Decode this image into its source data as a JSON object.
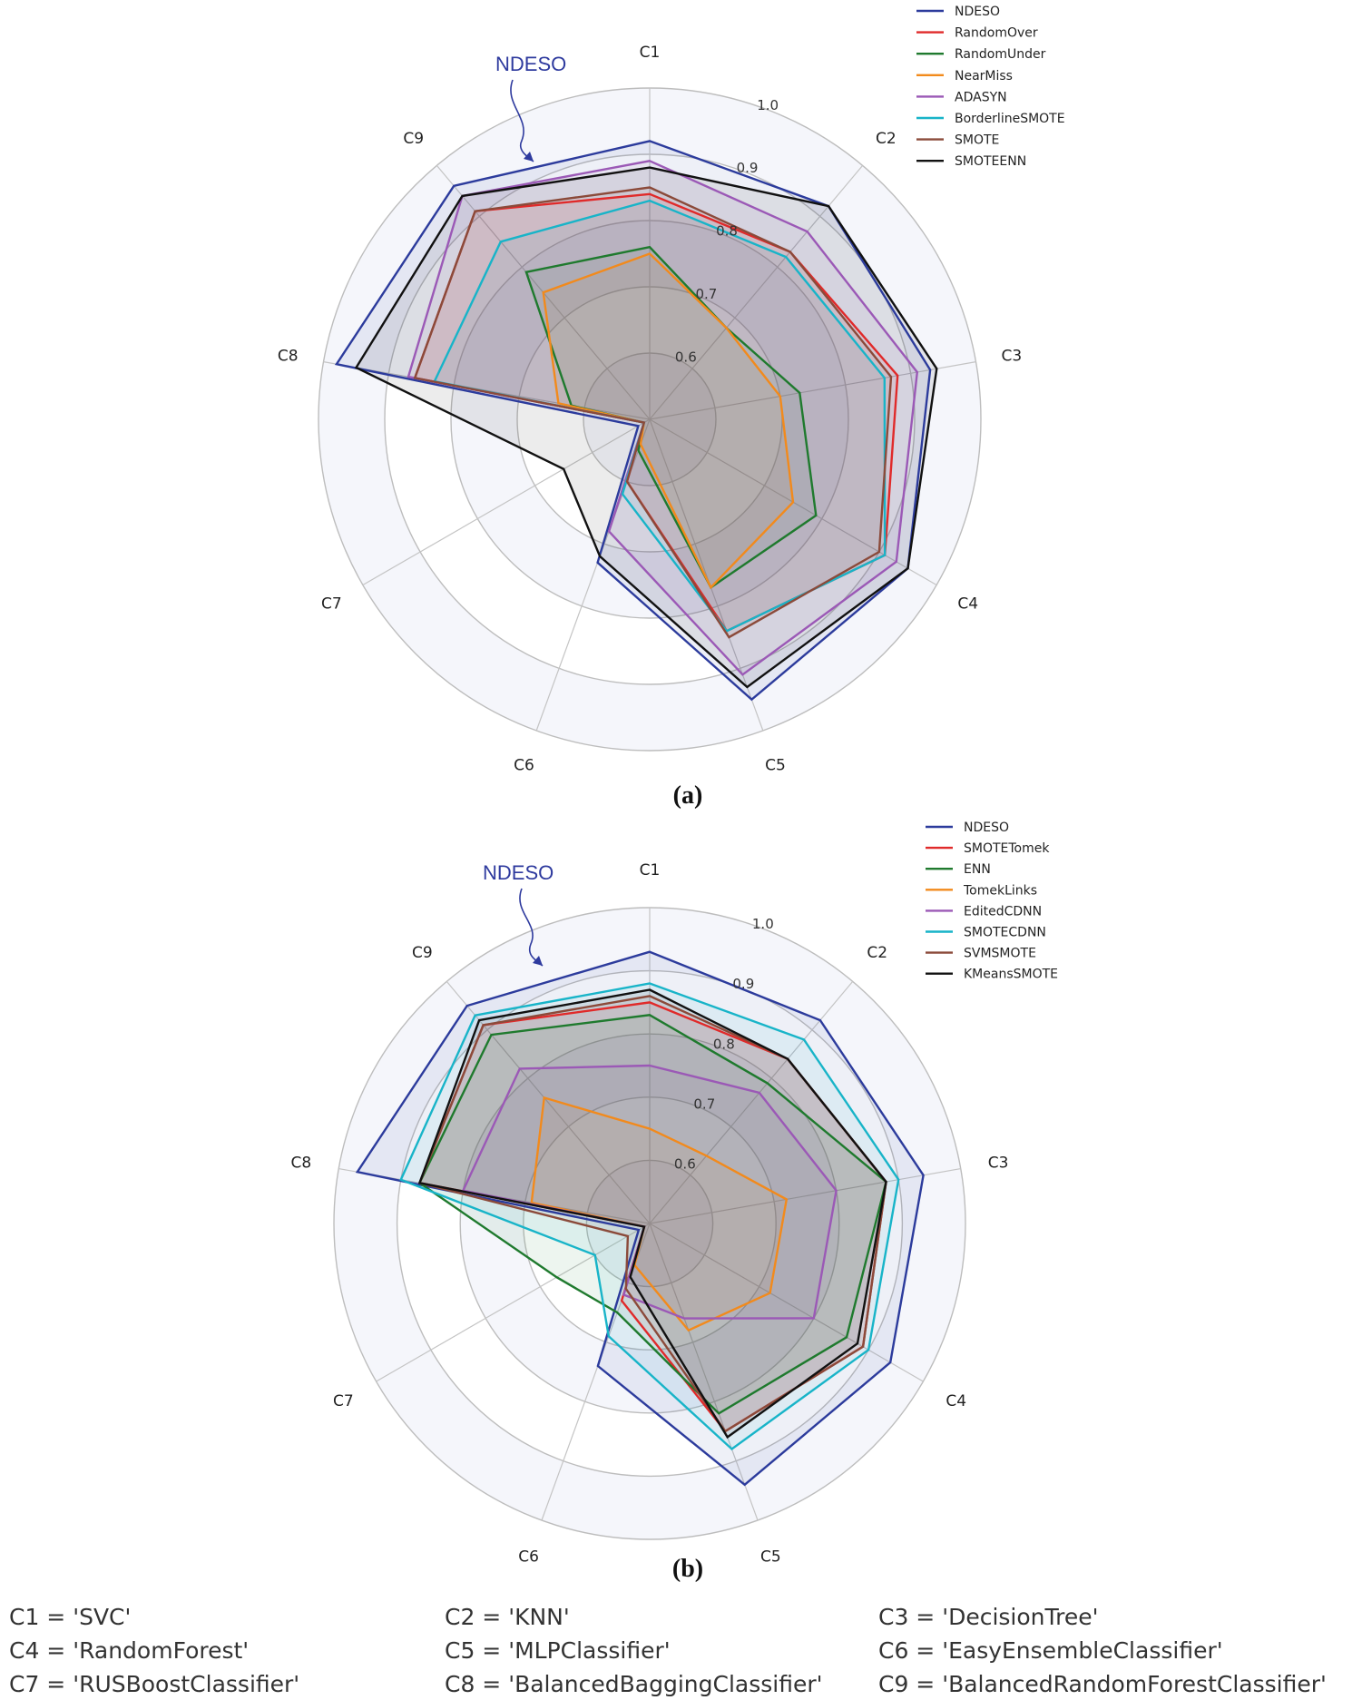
{
  "chart_data": [
    {
      "type": "radar",
      "panel_label": "(a)",
      "annotation": "NDESO",
      "axes": [
        "C1",
        "C2",
        "C3",
        "C4",
        "C5",
        "C6",
        "C7",
        "C8",
        "C9"
      ],
      "rmin": 0.5,
      "rmax": 1.0,
      "ticks": [
        0.6,
        0.7,
        0.8,
        0.9,
        1.0
      ],
      "tick_labels": [
        "0.6",
        "0.7",
        "0.8",
        "0.9",
        "1.0"
      ],
      "series": [
        {
          "name": "NDESO",
          "color": "#2c3b9c",
          "values": [
            0.92,
            0.92,
            0.93,
            0.95,
            0.95,
            0.73,
            0.52,
            0.98,
            0.96
          ]
        },
        {
          "name": "RandomOver",
          "color": "#e02a2a",
          "values": [
            0.84,
            0.83,
            0.88,
            0.91,
            0.84,
            0.6,
            0.51,
            0.86,
            0.91
          ]
        },
        {
          "name": "RandomUnder",
          "color": "#1f7a2e",
          "values": [
            0.76,
            0.68,
            0.73,
            0.79,
            0.77,
            0.55,
            0.51,
            0.62,
            0.79
          ]
        },
        {
          "name": "NearMiss",
          "color": "#f28a1c",
          "values": [
            0.75,
            0.68,
            0.7,
            0.75,
            0.77,
            0.54,
            0.51,
            0.64,
            0.75
          ]
        },
        {
          "name": "ADASYN",
          "color": "#9b59b6",
          "values": [
            0.89,
            0.87,
            0.91,
            0.93,
            0.91,
            0.68,
            0.51,
            0.87,
            0.94
          ]
        },
        {
          "name": "BorderlineSMOTE",
          "color": "#18b4c8",
          "values": [
            0.83,
            0.82,
            0.86,
            0.91,
            0.84,
            0.62,
            0.51,
            0.83,
            0.85
          ]
        },
        {
          "name": "SMOTE",
          "color": "#8b4a3a",
          "values": [
            0.85,
            0.83,
            0.87,
            0.9,
            0.85,
            0.6,
            0.51,
            0.86,
            0.91
          ]
        },
        {
          "name": "SMOTEENN",
          "color": "#111111",
          "values": [
            0.88,
            0.92,
            0.94,
            0.95,
            0.93,
            0.72,
            0.65,
            0.95,
            0.94
          ]
        }
      ]
    },
    {
      "type": "radar",
      "panel_label": "(b)",
      "annotation": "NDESO",
      "axes": [
        "C1",
        "C2",
        "C3",
        "C4",
        "C5",
        "C6",
        "C7",
        "C8",
        "C9"
      ],
      "rmin": 0.5,
      "rmax": 1.0,
      "ticks": [
        0.6,
        0.7,
        0.8,
        0.9,
        1.0
      ],
      "tick_labels": [
        "0.6",
        "0.7",
        "0.8",
        "0.9",
        "1.0"
      ],
      "series": [
        {
          "name": "NDESO",
          "color": "#2c3b9c",
          "values": [
            0.93,
            0.92,
            0.94,
            0.94,
            0.94,
            0.74,
            0.52,
            0.97,
            0.95
          ]
        },
        {
          "name": "SMOTETomek",
          "color": "#e02a2a",
          "values": [
            0.85,
            0.84,
            0.88,
            0.89,
            0.85,
            0.63,
            0.51,
            0.87,
            0.91
          ]
        },
        {
          "name": "ENN",
          "color": "#1f7a2e",
          "values": [
            0.83,
            0.79,
            0.88,
            0.86,
            0.82,
            0.65,
            0.67,
            0.87,
            0.89
          ]
        },
        {
          "name": "TomekLinks",
          "color": "#f28a1c",
          "values": [
            0.65,
            0.64,
            0.72,
            0.72,
            0.68,
            0.57,
            0.51,
            0.69,
            0.76
          ]
        },
        {
          "name": "EditedCDNN",
          "color": "#9b59b6",
          "values": [
            0.75,
            0.77,
            0.8,
            0.8,
            0.66,
            0.62,
            0.51,
            0.8,
            0.82
          ]
        },
        {
          "name": "SMOTECDNN",
          "color": "#18b4c8",
          "values": [
            0.88,
            0.88,
            0.9,
            0.9,
            0.88,
            0.69,
            0.6,
            0.9,
            0.93
          ]
        },
        {
          "name": "SVMSMOTE",
          "color": "#8b4a3a",
          "values": [
            0.86,
            0.84,
            0.88,
            0.89,
            0.85,
            0.61,
            0.54,
            0.87,
            0.91
          ]
        },
        {
          "name": "KMeansSMOTE",
          "color": "#111111",
          "values": [
            0.87,
            0.84,
            0.88,
            0.88,
            0.86,
            0.59,
            0.51,
            0.87,
            0.92
          ]
        }
      ]
    }
  ],
  "key": [
    "C1 = 'SVC'",
    "C2 = 'KNN'",
    "C3 = 'DecisionTree'",
    "C4 = 'RandomForest'",
    "C5 = 'MLPClassifier'",
    "C6 = 'EasyEnsembleClassifier'",
    "C7 = 'RUSBoostClassifier'",
    "C8 = 'BalancedBaggingClassifier'",
    "C9 = 'BalancedRandomForestClassifier'"
  ]
}
